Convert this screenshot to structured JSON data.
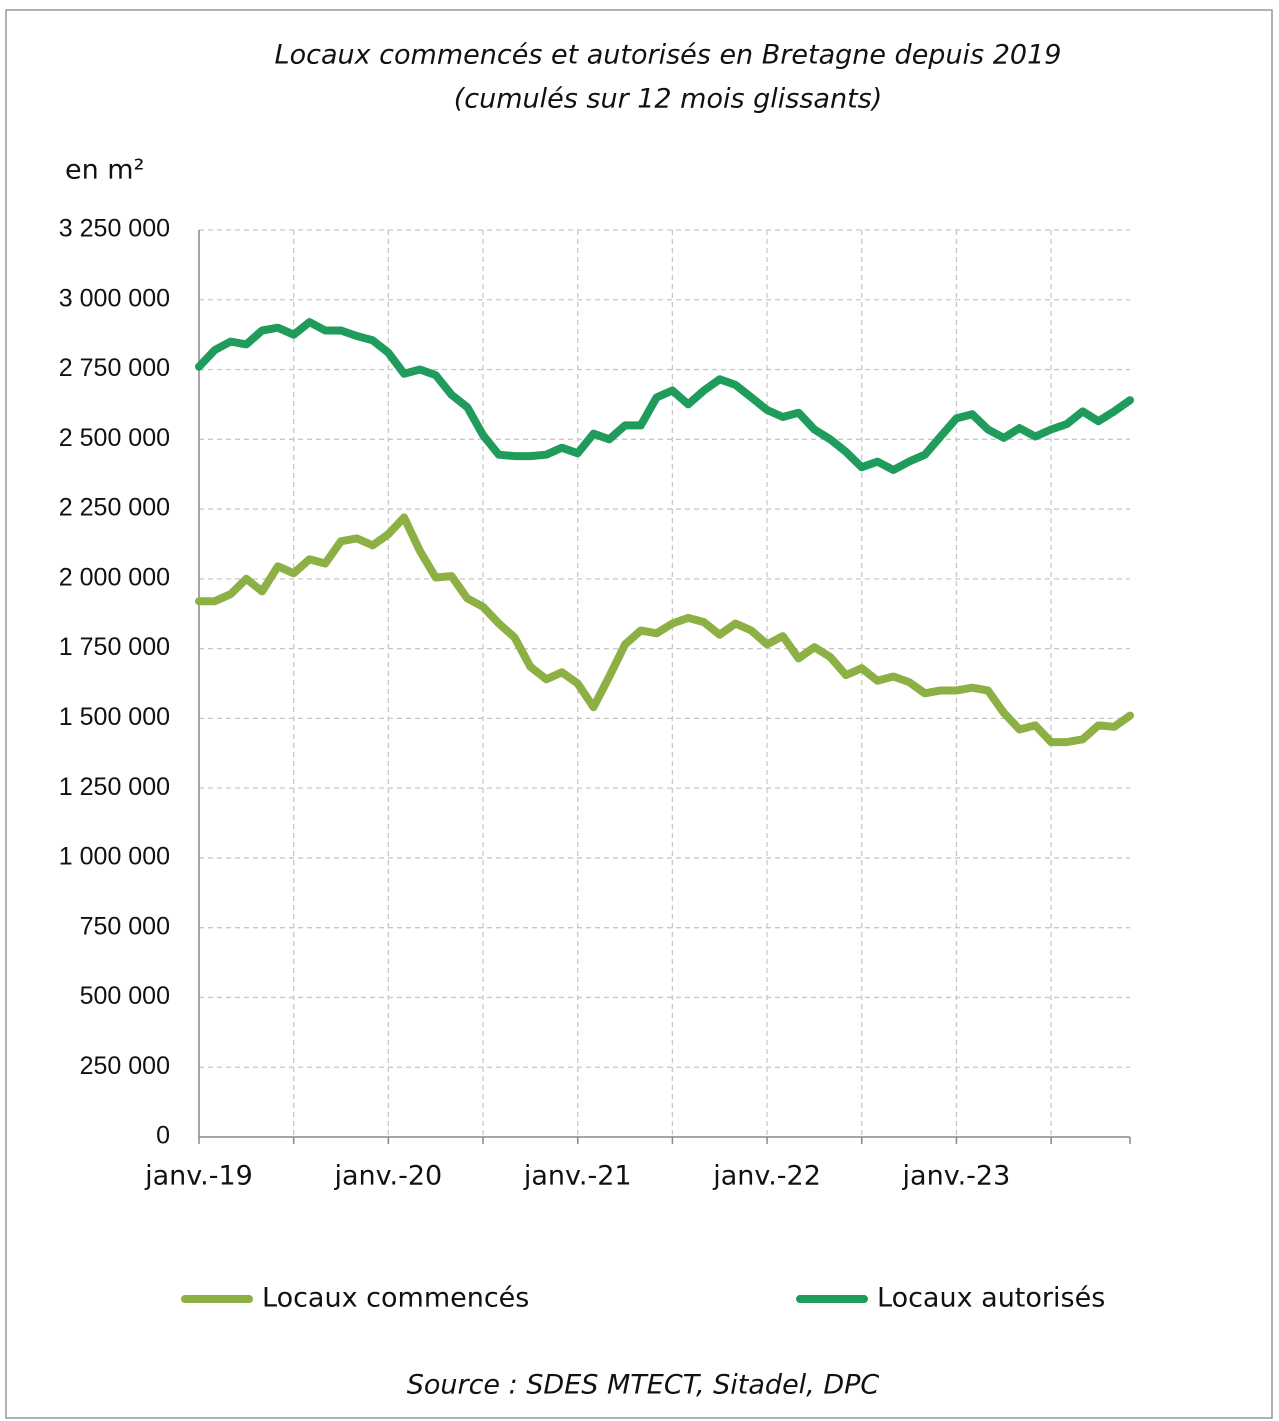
{
  "chart_data": {
    "type": "line",
    "title": "Locaux commencés et autorisés en Bretagne depuis 2019",
    "subtitle": "(cumulés sur 12 mois glissants)",
    "y_label": "en m²",
    "source": "Source : SDES MTECT, Sitadel, DPC",
    "categories": [
      "janv.-19",
      null,
      null,
      null,
      null,
      null,
      null,
      null,
      null,
      null,
      null,
      null,
      "janv.-20",
      null,
      null,
      null,
      null,
      null,
      null,
      null,
      null,
      null,
      null,
      null,
      "janv.-21",
      null,
      null,
      null,
      null,
      null,
      null,
      null,
      null,
      null,
      null,
      null,
      "janv.-22",
      null,
      null,
      null,
      null,
      null,
      null,
      null,
      null,
      null,
      null,
      null,
      "janv.-23",
      null,
      null,
      null,
      null,
      null,
      null,
      null,
      null,
      null,
      null,
      null
    ],
    "series": [
      {
        "name": "Locaux commencés",
        "color": "#8cb043",
        "values": [
          1920000,
          1920000,
          1945000,
          2000000,
          1955000,
          2045000,
          2020000,
          2070000,
          2055000,
          2135000,
          2145000,
          2120000,
          2160000,
          2220000,
          2100000,
          2005000,
          2010000,
          1930000,
          1900000,
          1840000,
          1790000,
          1685000,
          1640000,
          1665000,
          1625000,
          1540000,
          1650000,
          1765000,
          1815000,
          1805000,
          1840000,
          1860000,
          1845000,
          1800000,
          1840000,
          1815000,
          1765000,
          1795000,
          1715000,
          1755000,
          1720000,
          1655000,
          1680000,
          1635000,
          1650000,
          1630000,
          1590000,
          1600000,
          1600000,
          1610000,
          1600000,
          1520000,
          1460000,
          1475000,
          1415000,
          1415000,
          1425000,
          1475000,
          1470000,
          1510000
        ]
      },
      {
        "name": "Locaux autorisés",
        "color": "#1f9b5b",
        "values": [
          2760000,
          2820000,
          2850000,
          2840000,
          2890000,
          2900000,
          2875000,
          2920000,
          2890000,
          2890000,
          2870000,
          2855000,
          2810000,
          2735000,
          2750000,
          2730000,
          2660000,
          2615000,
          2515000,
          2445000,
          2440000,
          2440000,
          2445000,
          2470000,
          2450000,
          2520000,
          2500000,
          2550000,
          2550000,
          2650000,
          2675000,
          2625000,
          2675000,
          2715000,
          2695000,
          2650000,
          2605000,
          2580000,
          2595000,
          2535000,
          2500000,
          2455000,
          2400000,
          2420000,
          2390000,
          2420000,
          2445000,
          2510000,
          2575000,
          2590000,
          2535000,
          2505000,
          2540000,
          2510000,
          2535000,
          2555000,
          2600000,
          2565000,
          2600000,
          2640000
        ]
      }
    ],
    "ylim": [
      0,
      3250000
    ],
    "yticks": [
      0,
      {
        "value": 250000,
        "label": "250 000"
      },
      {
        "value": 500000,
        "label": "500 000"
      },
      {
        "value": 750000,
        "label": "750 000"
      },
      {
        "value": 1000000,
        "label": "1 000 000"
      },
      {
        "value": 1250000,
        "label": "1 250 000"
      },
      {
        "value": 1500000,
        "label": "1 500 000"
      },
      {
        "value": 1750000,
        "label": "1 750 000"
      },
      {
        "value": 2000000,
        "label": "2 000 000"
      },
      {
        "value": 2250000,
        "label": "2 250 000"
      },
      {
        "value": 2500000,
        "label": "2 500 000"
      },
      {
        "value": 2750000,
        "label": "2 750 000"
      },
      {
        "value": 3000000,
        "label": "3 000 000"
      },
      {
        "value": 3250000,
        "label": "3 250 000"
      }
    ],
    "grid": true,
    "legend": "bottom"
  }
}
